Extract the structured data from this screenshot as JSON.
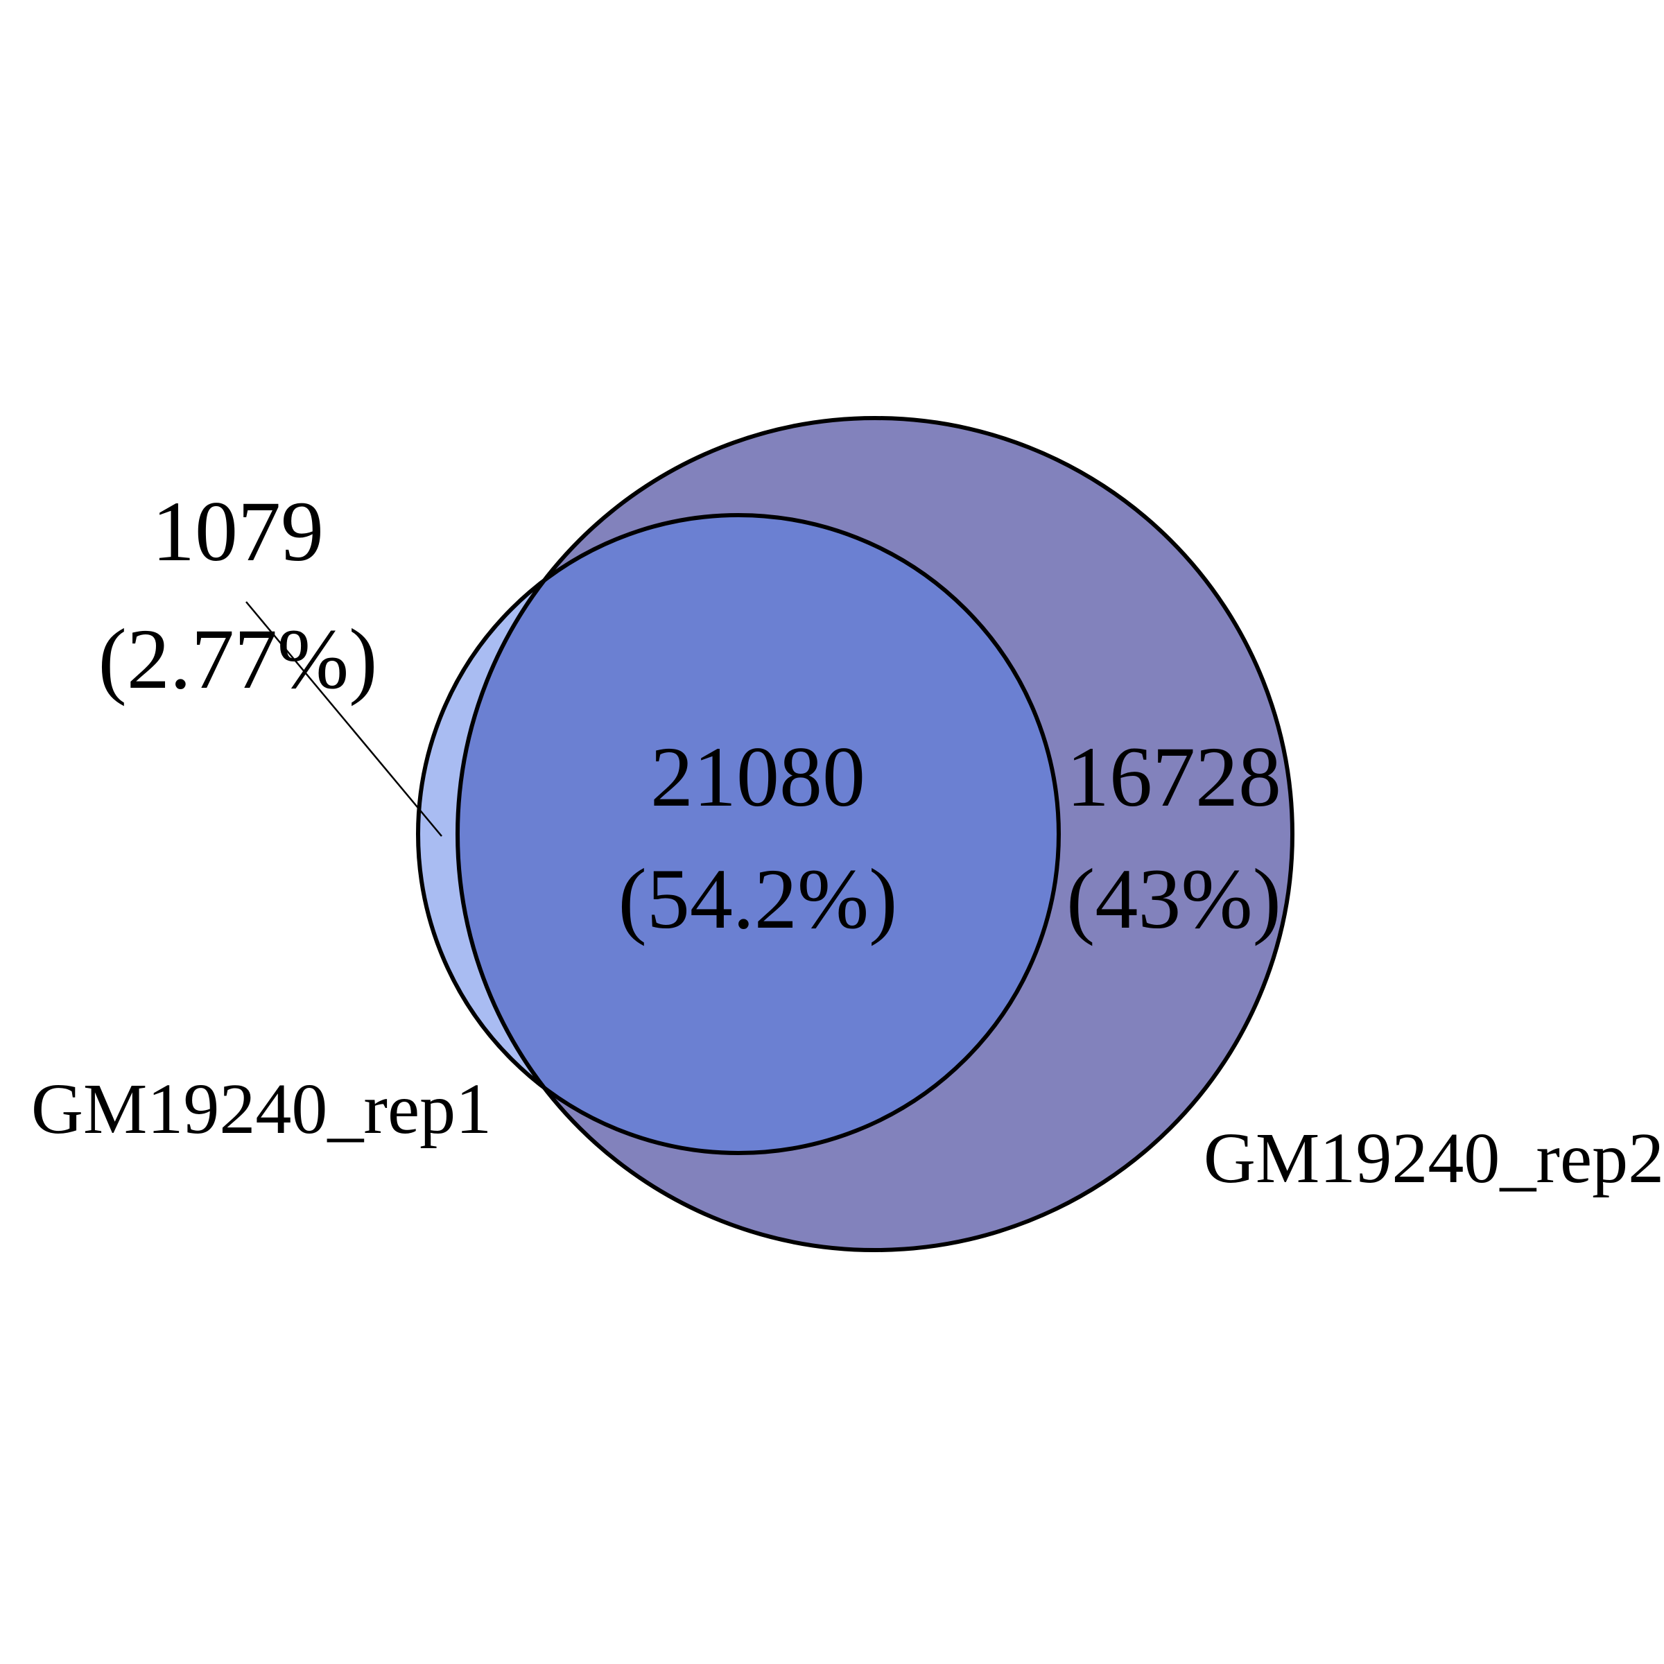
{
  "venn": {
    "sets": [
      {
        "name": "GM19240_rep1",
        "fill": "#a9bcf2"
      },
      {
        "name": "GM19240_rep2",
        "fill": "#8282bc"
      }
    ],
    "overlap_fill": "#6b80d2",
    "outline_color": "#000000",
    "regions": {
      "rep1_only": {
        "count": "1079",
        "percent": "(2.77%)"
      },
      "both": {
        "count": "21080",
        "percent": "(54.2%)"
      },
      "rep2_only": {
        "count": "16728",
        "percent": "(43%)"
      }
    }
  }
}
